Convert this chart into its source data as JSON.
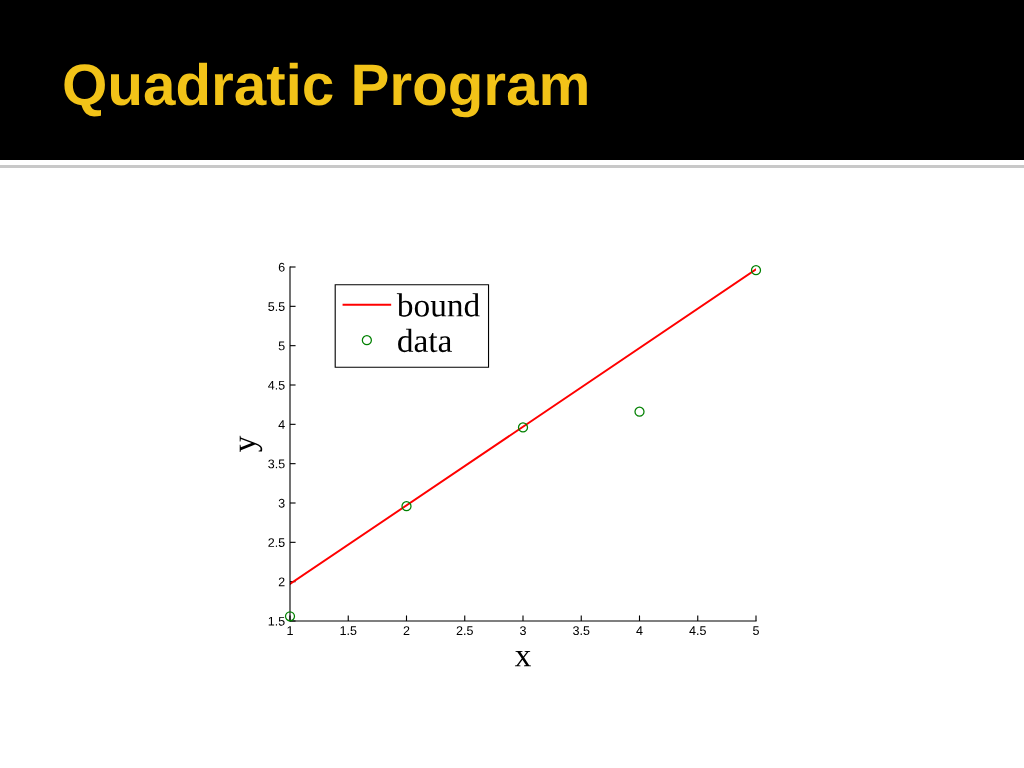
{
  "chart_data": {
    "type": "line",
    "title": "Quadratic Program",
    "xlabel": "x",
    "ylabel": "y",
    "xlim": [
      1,
      5
    ],
    "ylim": [
      1.5,
      6
    ],
    "xticks": [
      1,
      1.5,
      2,
      2.5,
      3,
      3.5,
      4,
      4.5,
      5
    ],
    "yticks": [
      1.5,
      2,
      2.5,
      3,
      3.5,
      4,
      4.5,
      5,
      5.5,
      6
    ],
    "grid": false,
    "legend": "top left",
    "series": [
      {
        "name": "bound",
        "color": "#ff0000",
        "line_style": "solid",
        "x": [
          1,
          5
        ],
        "values": [
          1.97,
          5.97
        ]
      },
      {
        "name": "data",
        "type": "scatter",
        "color": "#008000",
        "marker": "circle",
        "x": [
          1,
          2,
          3,
          4,
          5
        ],
        "values": [
          1.56,
          2.96,
          3.96,
          4.16,
          5.96
        ]
      }
    ]
  }
}
